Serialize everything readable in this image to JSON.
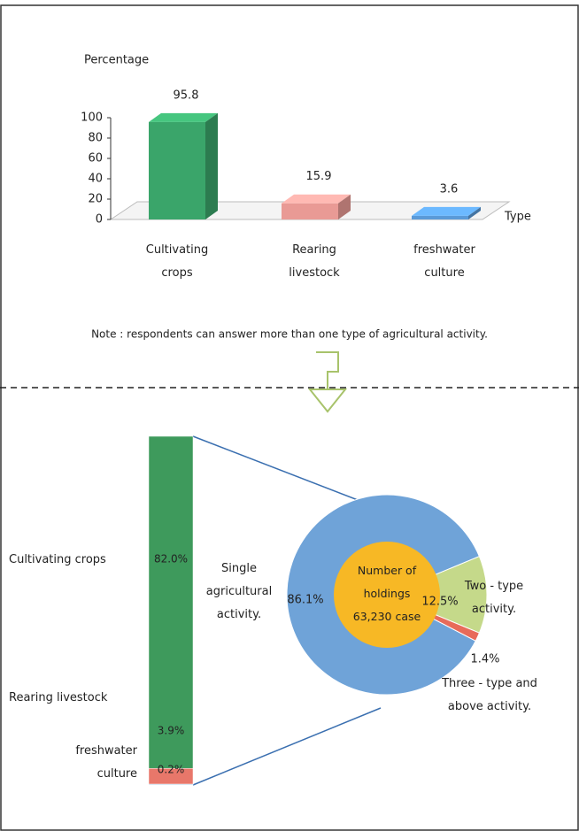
{
  "chart_data": [
    {
      "type": "bar3d",
      "y_label": "Percentage",
      "x_label": "Type",
      "categories": [
        "Cultivating crops",
        "Rearing livestock",
        "freshwater culture"
      ],
      "values": [
        95.8,
        15.9,
        3.6
      ],
      "colors": [
        "#3aa56a",
        "#e99a95",
        "#5a9ad8"
      ],
      "ylim": [
        0,
        100
      ],
      "yticks": [
        0,
        20,
        40,
        60,
        80,
        100
      ]
    },
    {
      "type": "stacked_bar",
      "series": [
        {
          "name": "Cultivating crops",
          "color": "#3e9a5c",
          "values": [
            82.0
          ],
          "value_labels": [
            "82.0%"
          ]
        },
        {
          "name": "Rearing  livestock",
          "color": "#e8776a",
          "values": [
            3.9
          ],
          "value_labels": [
            "3.9%"
          ]
        },
        {
          "name": "freshwater culture",
          "color": "#9dc3e6",
          "values": [
            0.2
          ],
          "value_labels": [
            "0.2%"
          ]
        }
      ]
    },
    {
      "type": "donut",
      "center_label": "Number of holdings 63,230 case",
      "labels": [
        "Single agricultural activity.",
        "Two - type activity.",
        "Three - type and above activity."
      ],
      "values": [
        86.1,
        12.5,
        1.4
      ],
      "value_labels": [
        "86.1%",
        "12.5%",
        "1.4%"
      ],
      "colors": [
        "#6fa3d8",
        "#c5d98a",
        "#e86b5a"
      ]
    }
  ],
  "note": "Note : respondents can answer  more than one type of agricultural activity."
}
